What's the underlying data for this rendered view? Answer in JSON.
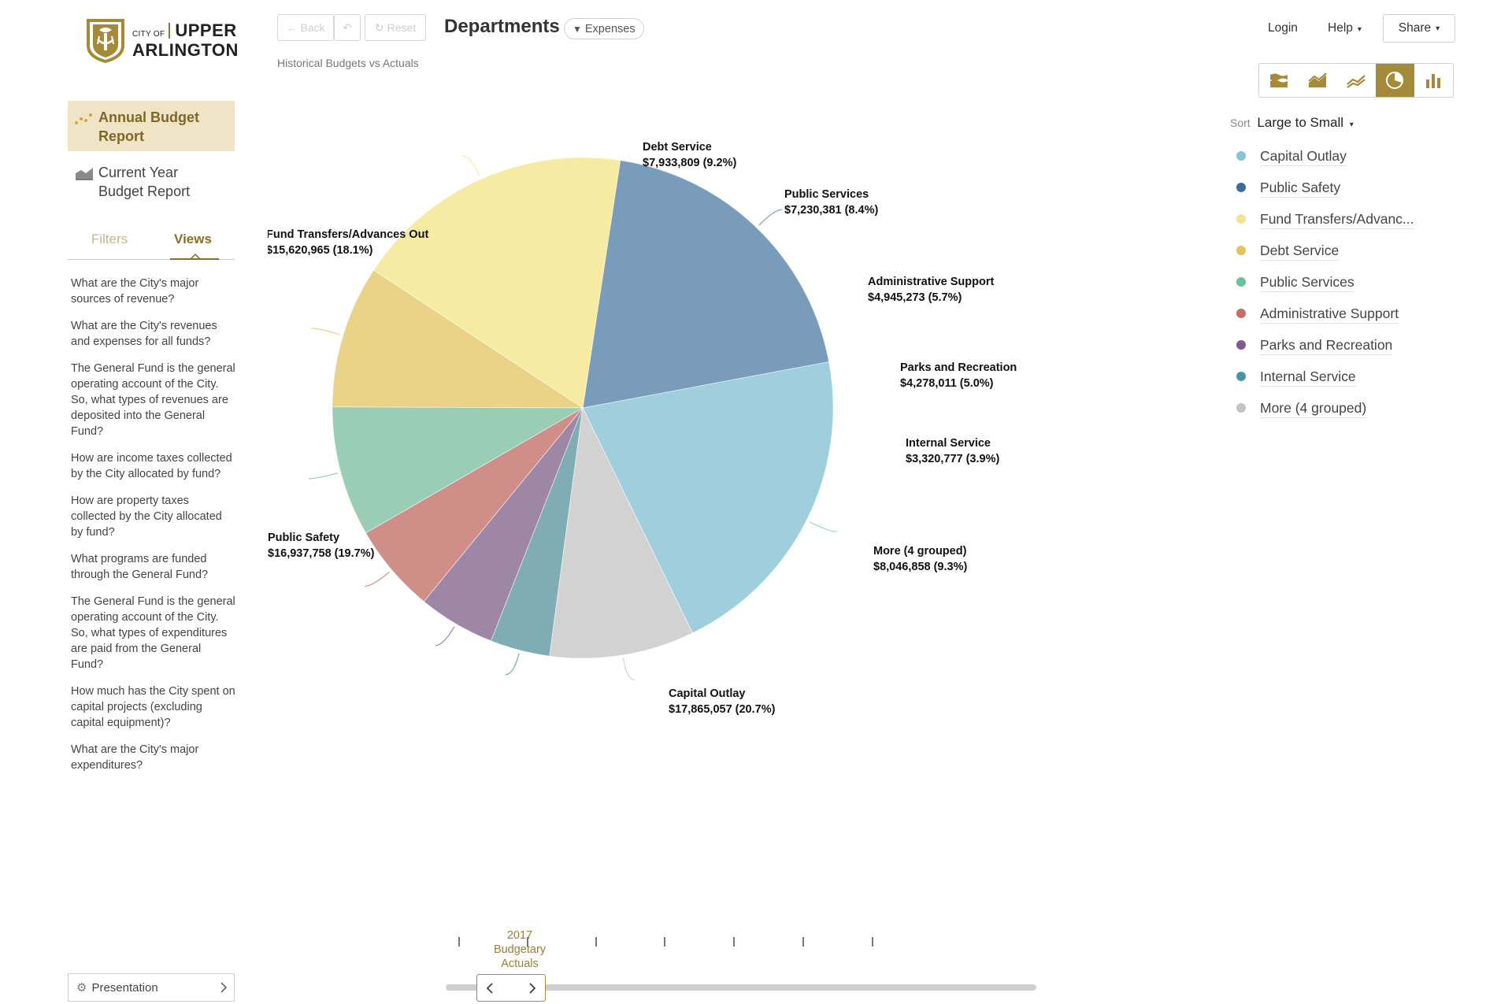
{
  "brand": {
    "city_of": "CITY OF",
    "line1": "UPPER",
    "line2": "ARLINGTON"
  },
  "sidebar": {
    "reports": [
      {
        "label": "Annual Budget Report",
        "active": true
      },
      {
        "label": "Current Year Budget Report",
        "active": false
      }
    ],
    "tabs": [
      {
        "label": "Filters",
        "active": false
      },
      {
        "label": "Views",
        "active": true
      }
    ],
    "questions": [
      "What are the City's major sources of revenue?",
      "What are the City's revenues and expenses for all funds?",
      "The General Fund is the general operating account of the City. So, what types of revenues are deposited into the General Fund?",
      "How are income taxes collected by the City allocated by fund?",
      "How are property taxes collected by the City allocated by fund?",
      "What programs are funded through the General Fund?",
      "The General Fund is the general operating account of the City. So, what types of expenditures are paid from the General Fund?",
      "How much has the City spent on capital projects (excluding capital equipment)?",
      "What are the City's major expenditures?"
    ],
    "presentation_label": "Presentation"
  },
  "toolbar": {
    "back_label": "Back",
    "reset_label": "Reset",
    "title": "Departments",
    "filter_label": "Expenses",
    "subtitle": "Historical Budgets vs Actuals",
    "login_label": "Login",
    "help_label": "Help",
    "share_label": "Share"
  },
  "view_switch": {
    "options": [
      "stacked-area-icon",
      "area-icon",
      "line-icon",
      "pie-icon",
      "bar-icon"
    ],
    "active": "pie-icon",
    "accent": "#a58a3a"
  },
  "sort": {
    "label": "Sort",
    "value": "Large to Small"
  },
  "legend": [
    {
      "label": "Capital Outlay",
      "color": "#86c4d8"
    },
    {
      "label": "Public Safety",
      "color": "#3e6b9c"
    },
    {
      "label": "Fund Transfers/Advanc...",
      "color": "#f3e48e"
    },
    {
      "label": "Debt Service",
      "color": "#e6c35a"
    },
    {
      "label": "Public Services",
      "color": "#6cc0a0"
    },
    {
      "label": "Administrative Support",
      "color": "#c96c62"
    },
    {
      "label": "Parks and Recreation",
      "color": "#7e5b95"
    },
    {
      "label": "Internal Service",
      "color": "#4a96a0"
    },
    {
      "label": "More (4 grouped)",
      "color": "#c4c4c4"
    }
  ],
  "chart_data": {
    "type": "pie",
    "start_angle_deg": 64,
    "slices": [
      {
        "label": "Capital Outlay",
        "value": 17865057,
        "value_text": "$17,865,057 (20.7%)",
        "percent": 20.7,
        "color": "#9fcedd"
      },
      {
        "label": "Public Safety",
        "value": 16937758,
        "value_text": "$16,937,758 (19.7%)",
        "percent": 19.7,
        "color": "#7a9cbb"
      },
      {
        "label": "Fund Transfers/Advances Out",
        "value": 15620965,
        "value_text": "$15,620,965 (18.1%)",
        "percent": 18.1,
        "color": "#f6eba2"
      },
      {
        "label": "Debt Service",
        "value": 7933809,
        "value_text": "$7,933,809 (9.2%)",
        "percent": 9.2,
        "color": "#ead286"
      },
      {
        "label": "Public Services",
        "value": 7230381,
        "value_text": "$7,230,381 (8.4%)",
        "percent": 8.4,
        "color": "#99cdb5"
      },
      {
        "label": "Administrative Support",
        "value": 4945273,
        "value_text": "$4,945,273 (5.7%)",
        "percent": 5.7,
        "color": "#cf8f88"
      },
      {
        "label": "Parks and Recreation",
        "value": 4278011,
        "value_text": "$4,278,011 (5.0%)",
        "percent": 5.0,
        "color": "#9e86a6"
      },
      {
        "label": "Internal Service",
        "value": 3320777,
        "value_text": "$3,320,777 (3.9%)",
        "percent": 3.9,
        "color": "#7fadb3"
      },
      {
        "label": "More (4 grouped)",
        "value": 8046858,
        "value_text": "$8,046,858 (9.3%)",
        "percent": 9.3,
        "color": "#d2d2d2"
      }
    ]
  },
  "timeline": {
    "selected_label": "2017 Budgetary Actuals",
    "tick_count": 7
  }
}
